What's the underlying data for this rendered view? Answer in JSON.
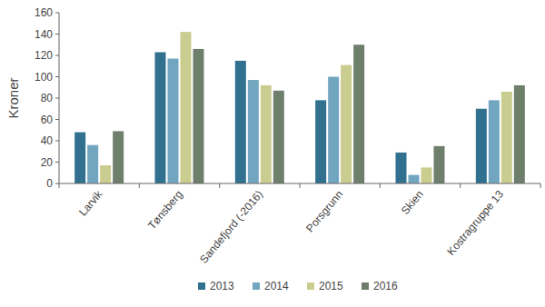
{
  "chart_data": {
    "type": "bar",
    "y_label": "Kroner",
    "categories": [
      "Larvik",
      "Tønsberg",
      "Sandefjord (-2016)",
      "Porsgrunn",
      "Skien",
      "Kostragruppe 13"
    ],
    "series": [
      {
        "name": "2013",
        "color": "#31708e",
        "values": [
          48,
          123,
          115,
          78,
          29,
          70
        ]
      },
      {
        "name": "2014",
        "color": "#72a5bf",
        "values": [
          36,
          117,
          97,
          100,
          8,
          78
        ]
      },
      {
        "name": "2015",
        "color": "#cbcc8f",
        "values": [
          17,
          142,
          92,
          111,
          15,
          86
        ]
      },
      {
        "name": "2016",
        "color": "#6e7f6b",
        "values": [
          49,
          126,
          87,
          130,
          35,
          92
        ]
      }
    ],
    "ylim": [
      0,
      160
    ],
    "yticks": [
      0,
      20,
      40,
      60,
      80,
      100,
      120,
      140,
      160
    ],
    "grid": false,
    "legend": "bottom"
  }
}
